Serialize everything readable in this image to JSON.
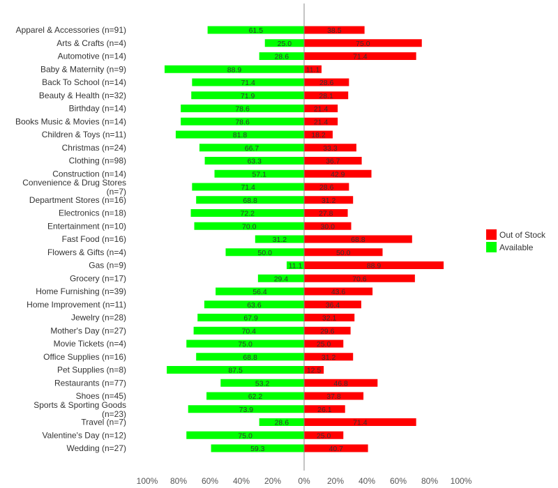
{
  "chart_data": {
    "type": "bar",
    "orientation": "horizontal-diverging",
    "categories": [
      "Apparel & Accessories (n=91)",
      "Arts & Crafts (n=4)",
      "Automotive (n=14)",
      "Baby & Maternity (n=9)",
      "Back To School (n=14)",
      "Beauty & Health (n=32)",
      "Birthday (n=14)",
      "Books Music & Movies (n=14)",
      "Children & Toys (n=11)",
      "Christmas (n=24)",
      "Clothing (n=98)",
      "Construction (n=14)",
      "Convenience & Drug Stores (n=7)",
      "Department Stores (n=16)",
      "Electronics (n=18)",
      "Entertainment (n=10)",
      "Fast Food (n=16)",
      "Flowers & Gifts (n=4)",
      "Gas (n=9)",
      "Grocery (n=17)",
      "Home Furnishing (n=39)",
      "Home Improvement (n=11)",
      "Jewelry (n=28)",
      "Mother's Day (n=27)",
      "Movie Tickets (n=4)",
      "Office Supplies (n=16)",
      "Pet Supplies (n=8)",
      "Restaurants (n=77)",
      "Shoes (n=45)",
      "Sports & Sporting Goods (n=23)",
      "Travel (n=7)",
      "Valentine's Day (n=12)",
      "Wedding (n=27)"
    ],
    "series": [
      {
        "name": "Available",
        "color": "#00ff00",
        "direction": "left",
        "values": [
          61.5,
          25.0,
          28.6,
          88.9,
          71.4,
          71.9,
          78.6,
          78.6,
          81.8,
          66.7,
          63.3,
          57.1,
          71.4,
          68.8,
          72.2,
          70.0,
          31.2,
          50.0,
          11.1,
          29.4,
          56.4,
          63.6,
          67.9,
          70.4,
          75.0,
          68.8,
          87.5,
          53.2,
          62.2,
          73.9,
          28.6,
          75.0,
          59.3
        ]
      },
      {
        "name": "Out of Stock",
        "color": "#ff0000",
        "direction": "right",
        "values": [
          38.5,
          75.0,
          71.4,
          11.1,
          28.6,
          28.1,
          21.4,
          21.4,
          18.2,
          33.3,
          36.7,
          42.9,
          28.6,
          31.2,
          27.8,
          30.0,
          68.8,
          50.0,
          88.9,
          70.6,
          43.6,
          36.4,
          32.1,
          29.6,
          25.0,
          31.2,
          12.5,
          46.8,
          37.8,
          26.1,
          71.4,
          25.0,
          40.7
        ]
      }
    ],
    "xlim": [
      -100,
      100
    ],
    "x_ticks": [
      "100%",
      "80%",
      "60%",
      "40%",
      "20%",
      "0%",
      "20%",
      "40%",
      "60%",
      "80%",
      "100%"
    ],
    "legend": {
      "placement": "right",
      "order": [
        "Out of Stock",
        "Available"
      ]
    },
    "grid": false,
    "zero_line_color": "#888888"
  }
}
